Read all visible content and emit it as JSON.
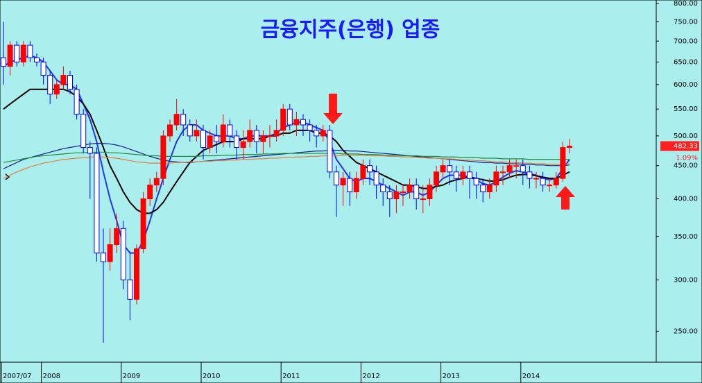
{
  "chart_data": {
    "type": "candlestick",
    "title": "금융지주(은행) 업종",
    "title_color": "#1a1aff",
    "categories": [
      "2007/07",
      null,
      null,
      null,
      null,
      null,
      "2008",
      null,
      null,
      null,
      null,
      null,
      null,
      null,
      null,
      null,
      null,
      null,
      "2009",
      null,
      null,
      null,
      null,
      null,
      null,
      null,
      null,
      null,
      null,
      null,
      "2010",
      null,
      null,
      null,
      null,
      null,
      null,
      null,
      null,
      null,
      null,
      null,
      "2011",
      null,
      null,
      null,
      null,
      null,
      null,
      null,
      null,
      null,
      null,
      null,
      "2012",
      null,
      null,
      null,
      null,
      null,
      null,
      null,
      null,
      null,
      null,
      null,
      "2013",
      null,
      null,
      null,
      null,
      null,
      null,
      null,
      null,
      null,
      null,
      null,
      "2014",
      null,
      null,
      null,
      null,
      null,
      null,
      null
    ],
    "open": [
      660,
      640,
      690,
      650,
      690,
      660,
      650,
      620,
      580,
      600,
      620,
      590,
      540,
      480,
      470,
      330,
      320,
      340,
      360,
      300,
      280,
      335,
      400,
      420,
      430,
      500,
      520,
      540,
      520,
      500,
      510,
      480,
      500,
      490,
      520,
      500,
      480,
      490,
      510,
      490,
      500,
      500,
      510,
      550,
      520,
      530,
      520,
      510,
      500,
      510,
      440,
      420,
      430,
      410,
      430,
      450,
      440,
      420,
      410,
      400,
      410,
      410,
      420,
      400,
      400,
      420,
      440,
      450,
      440,
      430,
      440,
      430,
      420,
      410,
      420,
      440,
      440,
      450,
      450,
      440,
      430,
      430,
      420,
      420,
      430,
      480
    ],
    "high": [
      750,
      700,
      700,
      700,
      700,
      670,
      660,
      630,
      610,
      640,
      630,
      600,
      550,
      490,
      480,
      360,
      360,
      380,
      370,
      330,
      340,
      410,
      430,
      440,
      510,
      530,
      570,
      550,
      530,
      530,
      520,
      510,
      520,
      540,
      530,
      510,
      510,
      530,
      520,
      510,
      520,
      530,
      560,
      560,
      545,
      540,
      530,
      520,
      520,
      520,
      450,
      440,
      440,
      440,
      460,
      460,
      450,
      430,
      420,
      420,
      420,
      430,
      430,
      420,
      430,
      450,
      460,
      460,
      450,
      450,
      450,
      440,
      430,
      430,
      450,
      450,
      460,
      460,
      460,
      450,
      440,
      440,
      430,
      440,
      490,
      495
    ],
    "low": [
      600,
      620,
      640,
      640,
      650,
      640,
      600,
      560,
      570,
      590,
      580,
      530,
      470,
      400,
      320,
      240,
      310,
      330,
      290,
      260,
      275,
      330,
      390,
      410,
      420,
      490,
      510,
      500,
      490,
      490,
      460,
      470,
      470,
      480,
      480,
      460,
      460,
      480,
      470,
      470,
      480,
      490,
      500,
      510,
      500,
      500,
      490,
      480,
      490,
      430,
      375,
      390,
      390,
      400,
      420,
      420,
      400,
      390,
      375,
      380,
      390,
      400,
      385,
      380,
      390,
      410,
      430,
      420,
      410,
      420,
      400,
      400,
      395,
      400,
      410,
      420,
      430,
      430,
      420,
      415,
      415,
      410,
      410,
      415,
      425,
      470
    ],
    "close": [
      640,
      690,
      650,
      690,
      660,
      650,
      620,
      580,
      600,
      620,
      590,
      540,
      480,
      470,
      330,
      320,
      340,
      360,
      300,
      280,
      335,
      400,
      420,
      430,
      500,
      520,
      540,
      520,
      500,
      510,
      480,
      500,
      490,
      520,
      500,
      480,
      490,
      510,
      490,
      500,
      500,
      510,
      550,
      520,
      530,
      520,
      510,
      500,
      510,
      440,
      420,
      430,
      410,
      430,
      450,
      440,
      420,
      410,
      400,
      410,
      410,
      420,
      400,
      400,
      420,
      440,
      450,
      440,
      430,
      440,
      430,
      420,
      410,
      420,
      440,
      440,
      450,
      450,
      440,
      430,
      430,
      420,
      420,
      430,
      480,
      482.33
    ],
    "up_color": "#ff0000",
    "down_color": "#0000ff",
    "series": [
      {
        "color": "#2233ee",
        "values": [
          640,
          650,
          655,
          660,
          665,
          660,
          650,
          630,
          610,
          600,
          600,
          590,
          560,
          530,
          490,
          440,
          400,
          370,
          340,
          330,
          330,
          345,
          370,
          400,
          430,
          460,
          490,
          510,
          520,
          520,
          510,
          505,
          500,
          500,
          500,
          495,
          495,
          500,
          500,
          500,
          500,
          505,
          515,
          520,
          525,
          525,
          520,
          515,
          510,
          490,
          460,
          445,
          430,
          425,
          430,
          430,
          425,
          420,
          415,
          410,
          405,
          410,
          410,
          405,
          410,
          420,
          430,
          435,
          435,
          435,
          432,
          428,
          422,
          420,
          425,
          432,
          438,
          442,
          440,
          437,
          435,
          430,
          428,
          430,
          445,
          460
        ]
      },
      {
        "color": "#000000",
        "values": [
          550,
          560,
          570,
          580,
          590,
          590,
          590,
          590,
          590,
          590,
          585,
          575,
          560,
          540,
          510,
          480,
          450,
          430,
          410,
          395,
          385,
          380,
          380,
          385,
          395,
          410,
          425,
          440,
          455,
          465,
          475,
          480,
          485,
          490,
          490,
          490,
          495,
          495,
          495,
          495,
          500,
          500,
          505,
          505,
          510,
          510,
          510,
          505,
          505,
          500,
          490,
          475,
          465,
          455,
          450,
          445,
          440,
          435,
          430,
          425,
          420,
          420,
          418,
          415,
          415,
          418,
          420,
          425,
          428,
          430,
          432,
          430,
          428,
          426,
          426,
          428,
          432,
          435,
          436,
          436,
          434,
          432,
          430,
          430,
          435,
          440
        ]
      },
      {
        "color": "#1c1c8c",
        "values": [
          445,
          450,
          455,
          460,
          463,
          466,
          469,
          472,
          475,
          478,
          480,
          482,
          484,
          486,
          487,
          487,
          486,
          484,
          481,
          477,
          473,
          469,
          465,
          462,
          459,
          457,
          456,
          455,
          455,
          456,
          457,
          458,
          459,
          460,
          461,
          462,
          463,
          464,
          465,
          466,
          467,
          468,
          469,
          470,
          471,
          472,
          473,
          474,
          474,
          475,
          475,
          475,
          474,
          474,
          473,
          472,
          471,
          470,
          469,
          468,
          467,
          466,
          465,
          464,
          463,
          462,
          461,
          460,
          459,
          458,
          457,
          456,
          455,
          455,
          454,
          454,
          453,
          453,
          452,
          452,
          451,
          451,
          450,
          450,
          450,
          451
        ]
      },
      {
        "color": "#1e8a3c",
        "values": [
          455,
          457,
          459,
          461,
          463,
          465,
          466,
          467,
          468,
          469,
          470,
          471,
          471,
          472,
          472,
          472,
          471,
          471,
          470,
          469,
          468,
          467,
          466,
          466,
          465,
          465,
          465,
          465,
          465,
          465,
          466,
          466,
          466,
          467,
          467,
          467,
          468,
          468,
          468,
          469,
          469,
          469,
          470,
          470,
          470,
          470,
          470,
          470,
          470,
          470,
          470,
          469,
          469,
          469,
          468,
          468,
          468,
          467,
          467,
          467,
          466,
          466,
          466,
          465,
          465,
          465,
          464,
          464,
          464,
          463,
          463,
          463,
          462,
          462,
          462,
          461,
          461,
          461,
          461,
          460,
          460,
          460,
          460,
          460,
          460,
          460
        ]
      },
      {
        "color": "#e08040",
        "values": [
          430,
          435,
          440,
          444,
          448,
          451,
          454,
          456,
          458,
          460,
          461,
          462,
          463,
          464,
          464,
          464,
          463,
          462,
          460,
          458,
          456,
          455,
          454,
          454,
          454,
          454,
          455,
          455,
          456,
          456,
          457,
          457,
          458,
          458,
          459,
          459,
          460,
          460,
          461,
          461,
          462,
          462,
          463,
          463,
          464,
          464,
          465,
          465,
          466,
          466,
          466,
          467,
          467,
          467,
          467,
          466,
          466,
          466,
          465,
          465,
          464,
          464,
          463,
          463,
          462,
          462,
          461,
          461,
          460,
          459,
          459,
          458,
          458,
          457,
          456,
          456,
          455,
          455,
          454,
          454,
          453,
          453,
          452,
          452,
          452,
          453
        ]
      }
    ],
    "log_scale": true,
    "ylim": [
      224,
      810
    ],
    "yticks": [
      {
        "value": 250,
        "label": "250.00"
      },
      {
        "value": 300,
        "label": "300.00"
      },
      {
        "value": 350,
        "label": "350.00"
      },
      {
        "value": 400,
        "label": "400.00"
      },
      {
        "value": 450,
        "label": "450.00"
      },
      {
        "value": 500,
        "label": "500.00"
      },
      {
        "value": 550,
        "label": "550.00"
      },
      {
        "value": 600,
        "label": "600.00"
      },
      {
        "value": 650,
        "label": "650.00"
      },
      {
        "value": 700,
        "label": "700.00"
      },
      {
        "value": 750,
        "label": "750.00"
      },
      {
        "value": 800,
        "label": "800.00"
      }
    ],
    "change_label": "1.09%",
    "background": "#aaeeee"
  }
}
